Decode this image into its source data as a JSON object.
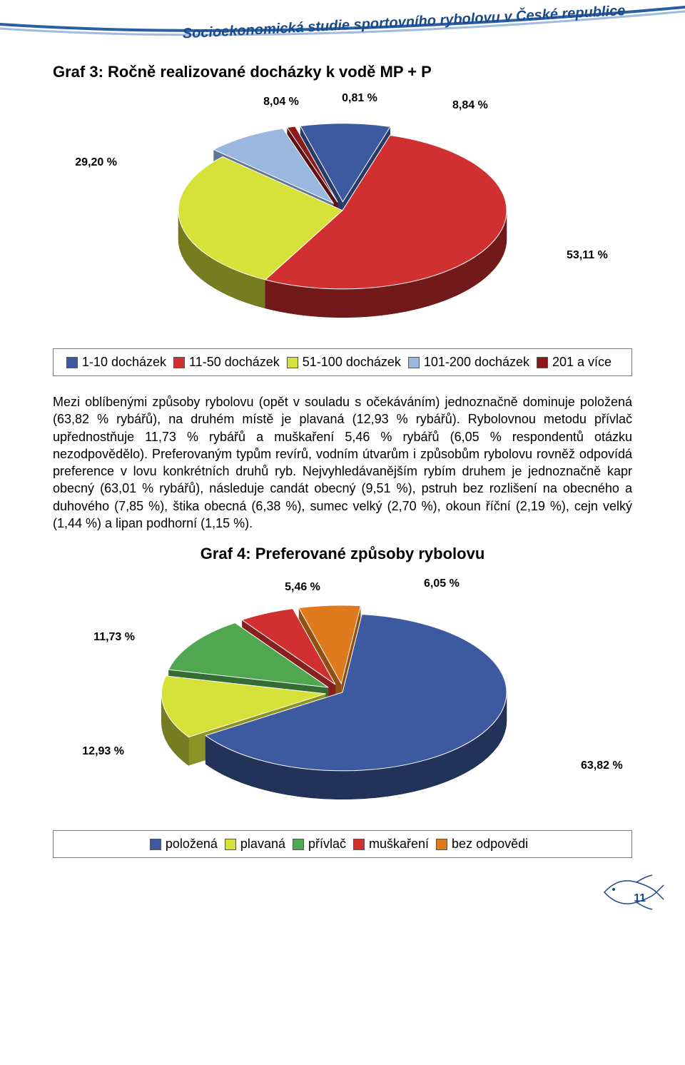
{
  "header": {
    "title": "Socioekonomická studie sportovního rybolovu v České republice",
    "curve_color_outer": "#2a5fa0",
    "curve_color_inner": "#9fbbe0"
  },
  "chart1": {
    "title": "Graf 3:  Ročně realizované docházky k vodě MP + P",
    "type": "pie3d",
    "slices": [
      {
        "label": "1-10 docházek",
        "value": 8.84,
        "pct": "8,84 %",
        "color": "#3d5aa0",
        "exploded": true
      },
      {
        "label": "11-50 docházek",
        "value": 53.11,
        "pct": "53,11 %",
        "color": "#d03030",
        "exploded": false
      },
      {
        "label": "51-100 docházek",
        "value": 29.2,
        "pct": "29,20 %",
        "color": "#d6e23a",
        "exploded": false
      },
      {
        "label": "101-200 docházek",
        "value": 8.04,
        "pct": "8,04 %",
        "color": "#9ab7e0",
        "exploded": true
      },
      {
        "label": "201 a více",
        "value": 0.81,
        "pct": "0,81 %",
        "color": "#8c1a1a",
        "exploded": true
      }
    ],
    "legend_items": [
      {
        "swatch": "#3d5aa0",
        "label": "1-10 docházek"
      },
      {
        "swatch": "#d03030",
        "label": "11-50 docházek"
      },
      {
        "swatch": "#d6e23a",
        "label": "51-100 docházek"
      },
      {
        "swatch": "#9ab7e0",
        "label": "101-200 docházek"
      },
      {
        "swatch": "#8c1a1a",
        "label": "201 a více"
      }
    ],
    "label_fontsize": 16,
    "label_color": "#000"
  },
  "paragraph": "Mezi oblíbenými způsoby rybolovu (opět v souladu s očekáváním) jednoznačně dominuje položená (63,82 % rybářů), na druhém místě je plavaná (12,93 % rybářů). Rybolovnou metodu přívlač upřednostňuje 11,73 % rybářů a muškaření 5,46 % rybářů (6,05 % respondentů otázku nezodpovědělo). Preferovaným typům revírů, vodním útvarům i způsobům rybolovu rovněž odpovídá preference v lovu konkrétních druhů ryb. Nejvyhledávanějším rybím druhem je jednoznačně kapr obecný (63,01 % rybářů), následuje candát obecný (9,51 %), pstruh bez rozlišení na obecného a duhového (7,85 %), štika obecná (6,38 %), sumec velký (2,70 %), okoun říční (2,19 %), cejn velký (1,44 %) a lipan podhorní (1,15 %).",
  "chart2": {
    "title": "Graf 4:  Preferované způsoby rybolovu",
    "type": "pie3d",
    "slices": [
      {
        "label": "bez odpovědi",
        "value": 6.05,
        "pct": "6,05 %",
        "color": "#e07a1f",
        "exploded": true
      },
      {
        "label": "položená",
        "value": 63.82,
        "pct": "63,82 %",
        "color": "#3d5aa0",
        "exploded": false
      },
      {
        "label": "plavaná",
        "value": 12.93,
        "pct": "12,93 %",
        "color": "#d6e23a",
        "exploded": true
      },
      {
        "label": "přívlač",
        "value": 11.73,
        "pct": "11,73 %",
        "color": "#4fa84f",
        "exploded": true
      },
      {
        "label": "muškaření",
        "value": 5.46,
        "pct": "5,46 %",
        "color": "#d03030",
        "exploded": true
      }
    ],
    "legend_items": [
      {
        "swatch": "#3d5aa0",
        "label": "položená"
      },
      {
        "swatch": "#d6e23a",
        "label": "plavaná"
      },
      {
        "swatch": "#4fa84f",
        "label": "přívlač"
      },
      {
        "swatch": "#d03030",
        "label": "muškaření"
      },
      {
        "swatch": "#e07a1f",
        "label": "bez odpovědi"
      }
    ],
    "label_fontsize": 16,
    "label_color": "#000"
  },
  "footer": {
    "page": "11",
    "fish_stroke": "#1a4a8a"
  }
}
